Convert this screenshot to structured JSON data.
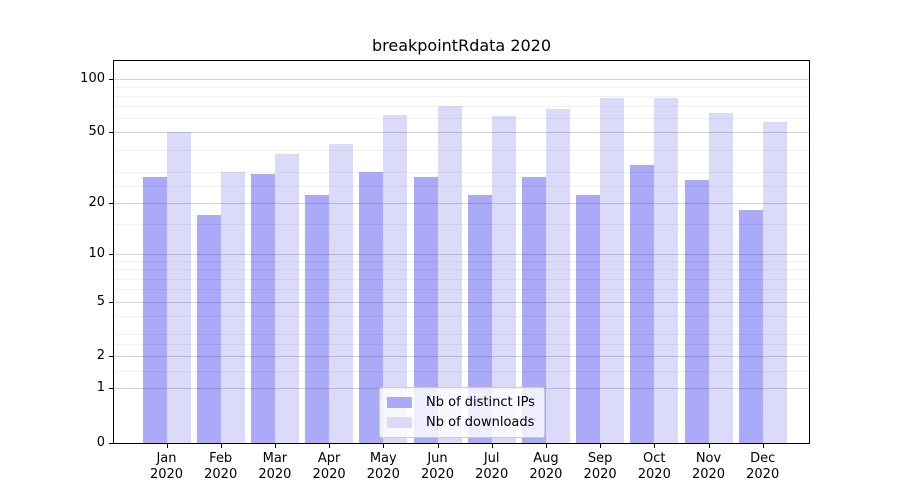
{
  "title": "breakpointRdata 2020",
  "chart_data": {
    "type": "bar",
    "title": "breakpointRdata 2020",
    "categories": [
      "Jan",
      "Feb",
      "Mar",
      "Apr",
      "May",
      "Jun",
      "Jul",
      "Aug",
      "Sep",
      "Oct",
      "Nov",
      "Dec"
    ],
    "x_tick_line2": "2020",
    "series": [
      {
        "name": "Nb of distinct IPs",
        "color": "#aaaaf8",
        "values": [
          28,
          17,
          29,
          22,
          30,
          28,
          22,
          28,
          22,
          33,
          27,
          18
        ]
      },
      {
        "name": "Nb of downloads",
        "color": "#dbdbf9",
        "values": [
          50,
          30,
          38,
          43,
          63,
          70,
          62,
          68,
          78,
          78,
          64,
          57
        ]
      }
    ],
    "yscale": "log1p",
    "ylim": [
      0,
      125
    ],
    "yticks": [
      100,
      50,
      20,
      10,
      5,
      2,
      1,
      0
    ],
    "minor_yticks": [
      1.5,
      2.5,
      3,
      4,
      6,
      7,
      8,
      9,
      15,
      25,
      30,
      40,
      60,
      70,
      80,
      90
    ],
    "grid": "horizontal",
    "legend_position": "lower center inside",
    "xlabel": "",
    "ylabel": ""
  },
  "colors": {
    "bar_distinct_ips": "#aaaaf8",
    "bar_downloads": "#dbdbf9",
    "grid_major": "#d9d9d9",
    "grid_minor": "#f2f2f2",
    "axis": "#000000",
    "background": "#ffffff"
  }
}
